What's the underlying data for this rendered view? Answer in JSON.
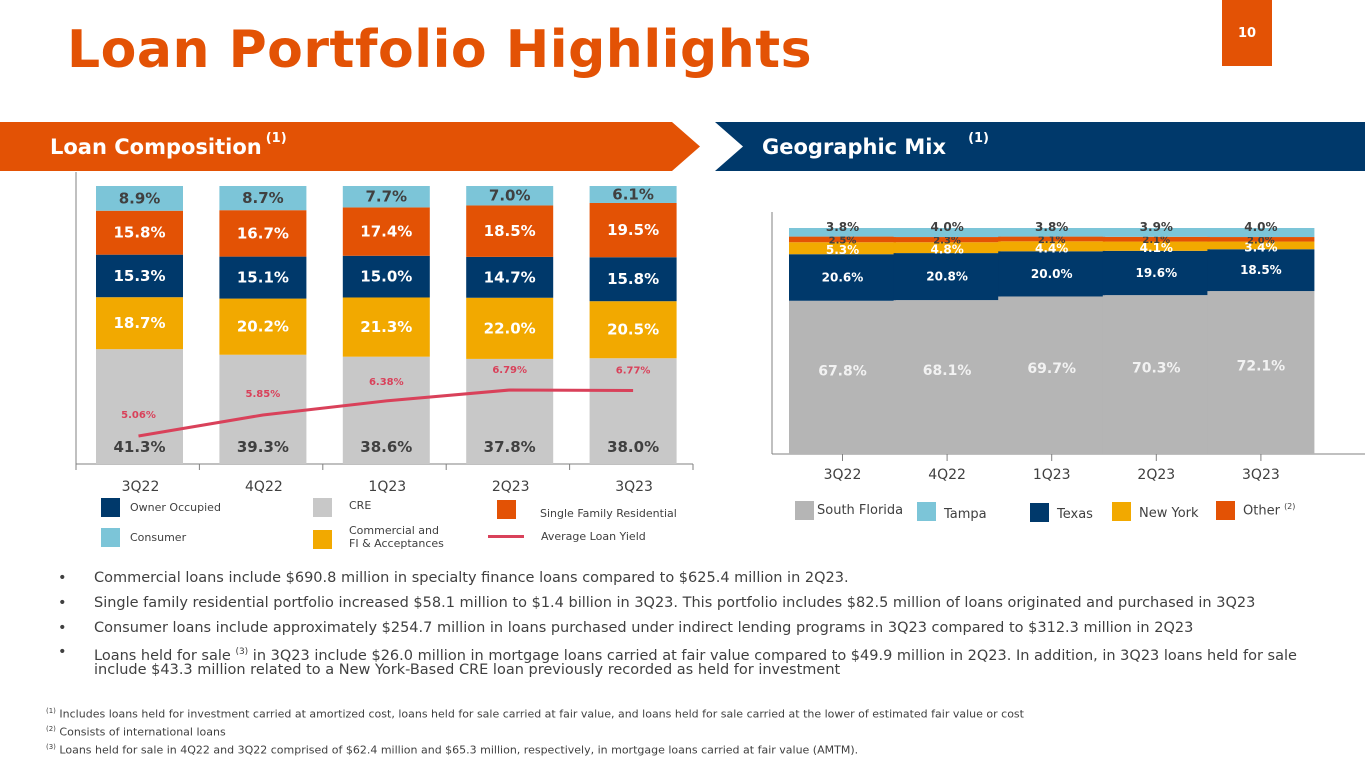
{
  "header": {
    "title": "Loan Portfolio Highlights",
    "page_number": "10"
  },
  "banners": {
    "left": {
      "label": "Loan Composition",
      "sup": "(1)"
    },
    "right": {
      "label": "Geographic Mix",
      "sup": "(1)"
    }
  },
  "colors": {
    "orange": "#E35205",
    "navy": "#00396B",
    "gray": "#C8C8C8",
    "gold": "#F2A900",
    "lightblue": "#7CC5D8",
    "yield": "#D9415A"
  },
  "chart_data": [
    {
      "type": "bar",
      "stacked": true,
      "title": "Loan Composition",
      "categories": [
        "3Q22",
        "4Q22",
        "1Q23",
        "2Q23",
        "3Q23"
      ],
      "series": [
        {
          "name": "CRE",
          "color": "#C8C8C8",
          "values": [
            41.3,
            39.3,
            38.6,
            37.8,
            38.0
          ],
          "labels": [
            "41.3%",
            "39.3%",
            "38.6%",
            "37.8%",
            "38.0%"
          ]
        },
        {
          "name": "Commercial and FI & Acceptances",
          "color": "#F2A900",
          "values": [
            18.7,
            20.2,
            21.3,
            22.0,
            20.5
          ],
          "labels": [
            "18.7%",
            "20.2%",
            "21.3%",
            "22.0%",
            "20.5%"
          ]
        },
        {
          "name": "Owner Occupied",
          "color": "#00396B",
          "values": [
            15.3,
            15.1,
            15.0,
            14.7,
            15.8
          ],
          "labels": [
            "15.3%",
            "15.1%",
            "15.0%",
            "14.7%",
            "15.8%"
          ]
        },
        {
          "name": "Single Family Residential",
          "color": "#E35205",
          "values": [
            15.8,
            16.7,
            17.4,
            18.5,
            19.5
          ],
          "labels": [
            "15.8%",
            "16.7%",
            "17.4%",
            "18.5%",
            "19.5%"
          ]
        },
        {
          "name": "Consumer",
          "color": "#7CC5D8",
          "values": [
            8.9,
            8.7,
            7.7,
            7.0,
            6.1
          ],
          "labels": [
            "8.9%",
            "8.7%",
            "7.7%",
            "7.0%",
            "6.1%"
          ]
        }
      ],
      "line_series": {
        "name": "Average Loan Yield",
        "color": "#D9415A",
        "values": [
          5.06,
          5.85,
          6.38,
          6.79,
          6.77
        ],
        "labels": [
          "5.06%",
          "5.85%",
          "6.38%",
          "6.79%",
          "6.77%"
        ]
      },
      "ylim": [
        0,
        100
      ],
      "legend": [
        {
          "name": "Owner Occupied",
          "kind": "box",
          "color": "#00396B"
        },
        {
          "name": "CRE",
          "kind": "box",
          "color": "#C8C8C8"
        },
        {
          "name": "Single Family Residential",
          "kind": "box",
          "color": "#E35205"
        },
        {
          "name": "Consumer",
          "kind": "box",
          "color": "#7CC5D8"
        },
        {
          "name": "Commercial and",
          "name2": "FI & Acceptances",
          "kind": "box",
          "color": "#F2A900"
        },
        {
          "name": "Average Loan Yield",
          "kind": "line",
          "color": "#D9415A"
        }
      ],
      "legend_position": "bottom"
    },
    {
      "type": "bar",
      "stacked": true,
      "title": "Geographic Mix",
      "categories": [
        "3Q22",
        "4Q22",
        "1Q23",
        "2Q23",
        "3Q23"
      ],
      "series": [
        {
          "name": "South Florida",
          "color": "#B5B5B5",
          "values": [
            67.8,
            68.1,
            69.7,
            70.3,
            72.1
          ],
          "labels": [
            "67.8%",
            "68.1%",
            "69.7%",
            "70.3%",
            "72.1%"
          ]
        },
        {
          "name": "Texas",
          "color": "#00396B",
          "values": [
            20.6,
            20.8,
            20.0,
            19.6,
            18.5
          ],
          "labels": [
            "20.6%",
            "20.8%",
            "20.0%",
            "19.6%",
            "18.5%"
          ]
        },
        {
          "name": "New York",
          "color": "#F2A900",
          "values": [
            5.3,
            4.8,
            4.4,
            4.1,
            3.4
          ],
          "labels": [
            "5.3%",
            "4.8%",
            "4.4%",
            "4.1%",
            "3.4%"
          ]
        },
        {
          "name": "Other",
          "color": "#E35205",
          "values": [
            2.5,
            2.3,
            2.1,
            2.1,
            2.0
          ],
          "labels": [
            "2.5%",
            "2.3%",
            "2.1%",
            "2.1%",
            "2.0%"
          ]
        },
        {
          "name": "Tampa",
          "color": "#7CC5D8",
          "values": [
            3.8,
            4.0,
            3.8,
            3.9,
            4.0
          ],
          "labels": [
            "3.8%",
            "4.0%",
            "3.8%",
            "3.9%",
            "4.0%"
          ]
        }
      ],
      "ylim": [
        0,
        100
      ],
      "legend": [
        {
          "name": "South Florida",
          "color": "#B5B5B5"
        },
        {
          "name": "Tampa",
          "color": "#7CC5D8"
        },
        {
          "name": "Texas",
          "color": "#00396B"
        },
        {
          "name": "New York",
          "color": "#F2A900"
        },
        {
          "name": "Other",
          "sup": "(2)",
          "color": "#E35205"
        }
      ],
      "legend_position": "bottom"
    }
  ],
  "bullets": [
    {
      "text": "Commercial loans include $690.8 million in specialty finance loans compared to $625.4 million in 2Q23."
    },
    {
      "text": "Single family residential portfolio increased $58.1 million to $1.4 billion in 3Q23. This portfolio includes $82.5 million of loans originated and purchased in 3Q23"
    },
    {
      "text": "Consumer loans include approximately $254.7 million in loans purchased under indirect lending programs in 3Q23 compared to $312.3 million in 2Q23"
    },
    {
      "pre": "Loans held for sale ",
      "sup": "(3)",
      "text": " in 3Q23 include $26.0 million in mortgage loans carried at fair value compared to $49.9 million in 2Q23. In addition, in 3Q23 loans held for sale include $43.3 million related to a New York-Based CRE loan previously recorded as held for investment"
    }
  ],
  "bullet_glyph": "•",
  "footnotes": [
    {
      "sup": "(1)",
      "text": " Includes loans held for investment carried at amortized cost, loans held for sale carried at fair value, and loans held for sale carried at the lower of estimated fair value or cost"
    },
    {
      "sup": "(2)",
      "text": " Consists of international loans"
    },
    {
      "sup": "(3)",
      "text": " Loans held for sale in 4Q22 and 3Q22 comprised of $62.4 million and $65.3 million, respectively, in mortgage loans carried at fair value (AMTM)."
    }
  ]
}
